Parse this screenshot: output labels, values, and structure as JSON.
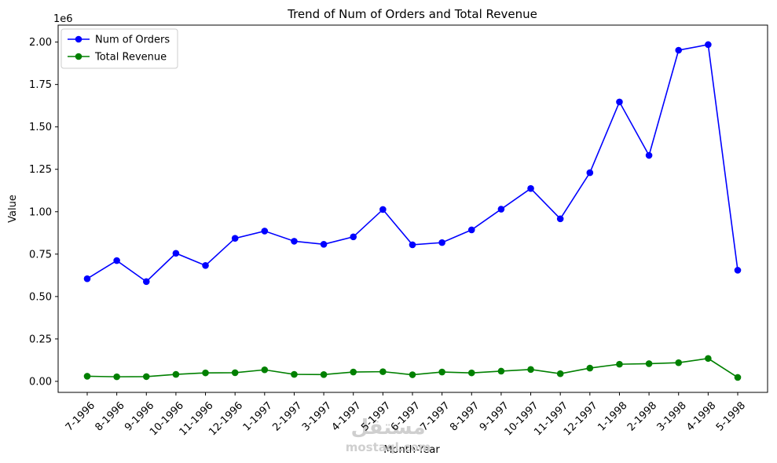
{
  "chart_data": {
    "type": "line",
    "title": "Trend of Num of Orders and Total Revenue",
    "xlabel": "Month-Year",
    "ylabel": "Value",
    "y_offset_label": "1e6",
    "ylim": [
      -0.065,
      2.1
    ],
    "yticks": [
      "0.00",
      "0.25",
      "0.50",
      "0.75",
      "1.00",
      "1.25",
      "1.50",
      "1.75",
      "2.00"
    ],
    "ytick_values": [
      0,
      0.25,
      0.5,
      0.75,
      1.0,
      1.25,
      1.5,
      1.75,
      2.0
    ],
    "grid": false,
    "legend_position": "top-left",
    "categories": [
      "7-1996",
      "8-1996",
      "9-1996",
      "10-1996",
      "11-1996",
      "12-1996",
      "1-1997",
      "2-1997",
      "3-1997",
      "4-1997",
      "5-1997",
      "6-1997",
      "7-1997",
      "8-1997",
      "9-1997",
      "10-1997",
      "11-1997",
      "12-1997",
      "1-1998",
      "2-1998",
      "3-1998",
      "4-1998",
      "5-1998"
    ],
    "series": [
      {
        "name": "Num of Orders",
        "color": "#0000ff",
        "values": [
          0.605,
          0.712,
          0.588,
          0.755,
          0.683,
          0.843,
          0.886,
          0.826,
          0.808,
          0.852,
          1.013,
          0.805,
          0.818,
          0.893,
          1.015,
          1.137,
          0.958,
          1.23,
          1.647,
          1.332,
          1.952,
          1.985,
          0.655
        ]
      },
      {
        "name": "Total Revenue",
        "color": "#008000",
        "values": [
          0.03,
          0.027,
          0.028,
          0.041,
          0.05,
          0.051,
          0.068,
          0.041,
          0.04,
          0.055,
          0.057,
          0.039,
          0.055,
          0.05,
          0.06,
          0.07,
          0.045,
          0.078,
          0.101,
          0.104,
          0.11,
          0.135,
          0.023
        ]
      }
    ]
  },
  "watermark": {
    "text": "مستقل",
    "subtext": "mostaql.com"
  }
}
